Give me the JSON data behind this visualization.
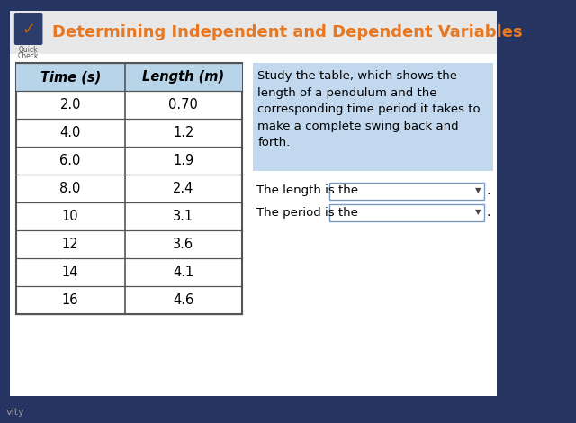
{
  "title": "Determining Independent and Dependent Variables",
  "title_color": "#E87722",
  "title_fontsize": 13,
  "bg_color": "#263462",
  "card_color": "#f0f0f0",
  "card_inner_color": "#ffffff",
  "header_bg": "#b8d4e8",
  "col_headers": [
    "Time (s)",
    "Length (m)"
  ],
  "rows": [
    [
      "2.0",
      "0.70"
    ],
    [
      "4.0",
      "1.2"
    ],
    [
      "6.0",
      "1.9"
    ],
    [
      "8.0",
      "2.4"
    ],
    [
      "10",
      "3.1"
    ],
    [
      "12",
      "3.6"
    ],
    [
      "14",
      "4.1"
    ],
    [
      "16",
      "4.6"
    ]
  ],
  "description_lines": [
    "Study the table, which shows the",
    "length of a pendulum and the",
    "corresponding time period it takes to",
    "make a complete swing back and",
    "forth."
  ],
  "desc_highlight": "#c2d8ee",
  "line1": "The length is the",
  "line2": "The period is the",
  "checkbox_color": "#2d3d6b",
  "check_color": "#cc6600",
  "icon_label1": "Quick",
  "icon_label2": "Check",
  "vity_text": "vity",
  "period_cursor": "↖"
}
